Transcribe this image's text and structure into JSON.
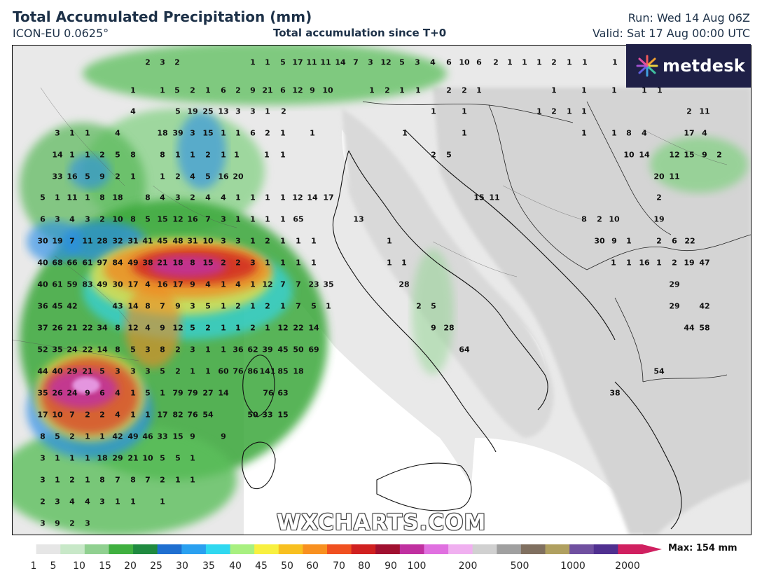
{
  "header": {
    "title": "Total Accumulated Precipitation (mm)",
    "model": "ICON-EU 0.0625°",
    "subtitle": "Total accumulation since T+0",
    "run": "Run: Wed 14 Aug 06Z",
    "valid": "Valid: Sat 17 Aug 00:00 UTC"
  },
  "logo": {
    "text": "metdesk",
    "icon": "metdesk-star-icon"
  },
  "watermark": "WXCHARTS.COM",
  "colorbar": {
    "ticks": [
      "1",
      "5",
      "10",
      "15",
      "20",
      "25",
      "30",
      "35",
      "40",
      "45",
      "50",
      "60",
      "70",
      "80",
      "90",
      "100",
      "200",
      "500",
      "1000",
      "2000"
    ],
    "max_label": "Max: 154 mm",
    "colors": [
      "#ffffff",
      "#e6e6e6",
      "#c8e8c8",
      "#90d090",
      "#40b040",
      "#208a40",
      "#1f6fd0",
      "#2aa0f0",
      "#30d8f0",
      "#a8f080",
      "#f8f040",
      "#f8c020",
      "#f89020",
      "#f05020",
      "#d02020",
      "#a01030",
      "#c030a0",
      "#e070e0",
      "#f0b0f0",
      "#d0d0d0",
      "#a0a0a0",
      "#807060",
      "#b0a060",
      "#7050a0",
      "#503090",
      "#d02060"
    ]
  },
  "values": [
    "2",
    "3",
    "2",
    "1",
    "1",
    "5",
    "17",
    "11",
    "11",
    "14",
    "7",
    "3",
    "12",
    "5",
    "3",
    "4",
    "6",
    "10",
    "6",
    "2",
    "1",
    "1",
    "1",
    "2",
    "1",
    "1",
    "1",
    "1",
    "1",
    "5",
    "2",
    "1",
    "6",
    "2",
    "9",
    "21",
    "6",
    "12",
    "9",
    "10",
    "1",
    "2",
    "1",
    "1",
    "2",
    "2",
    "1",
    "1",
    "1",
    "1",
    "1",
    "1",
    "4",
    "5",
    "19",
    "25",
    "13",
    "3",
    "3",
    "1",
    "2",
    "1",
    "1",
    "1",
    "2",
    "1",
    "1",
    "2",
    "11",
    "3",
    "1",
    "1",
    "4",
    "18",
    "39",
    "3",
    "15",
    "1",
    "1",
    "6",
    "2",
    "1",
    "1",
    "1",
    "1",
    "1",
    "1",
    "8",
    "4",
    "17",
    "4",
    "14",
    "1",
    "1",
    "2",
    "5",
    "8",
    "8",
    "1",
    "1",
    "2",
    "1",
    "1",
    "1",
    "1",
    "2",
    "5",
    "10",
    "14",
    "12",
    "15",
    "9",
    "2",
    "33",
    "16",
    "5",
    "9",
    "2",
    "1",
    "1",
    "2",
    "4",
    "5",
    "16",
    "20",
    "20",
    "11",
    "5",
    "1",
    "11",
    "1",
    "8",
    "18",
    "8",
    "4",
    "3",
    "2",
    "4",
    "4",
    "1",
    "1",
    "1",
    "1",
    "12",
    "14",
    "17",
    "15",
    "11",
    "2",
    "6",
    "3",
    "4",
    "3",
    "2",
    "10",
    "8",
    "5",
    "15",
    "12",
    "16",
    "7",
    "3",
    "1",
    "1",
    "1",
    "1",
    "65",
    "13",
    "8",
    "2",
    "10",
    "19",
    "30",
    "19",
    "7",
    "11",
    "28",
    "32",
    "31",
    "41",
    "45",
    "48",
    "31",
    "10",
    "3",
    "3",
    "1",
    "2",
    "1",
    "1",
    "1",
    "1",
    "30",
    "9",
    "1",
    "2",
    "6",
    "22",
    "40",
    "68",
    "66",
    "61",
    "97",
    "84",
    "49",
    "38",
    "21",
    "18",
    "8",
    "15",
    "2",
    "2",
    "3",
    "1",
    "1",
    "1",
    "1",
    "1",
    "1",
    "1",
    "1",
    "16",
    "1",
    "2",
    "19",
    "47",
    "40",
    "61",
    "59",
    "83",
    "49",
    "30",
    "17",
    "4",
    "16",
    "17",
    "9",
    "4",
    "1",
    "4",
    "1",
    "12",
    "7",
    "7",
    "23",
    "35",
    "28",
    "29",
    "36",
    "45",
    "42",
    "43",
    "14",
    "8",
    "7",
    "9",
    "3",
    "5",
    "1",
    "2",
    "1",
    "2",
    "1",
    "7",
    "5",
    "1",
    "2",
    "5",
    "29",
    "42",
    "37",
    "26",
    "21",
    "22",
    "34",
    "8",
    "12",
    "4",
    "9",
    "12",
    "5",
    "2",
    "1",
    "1",
    "2",
    "1",
    "12",
    "22",
    "14",
    "9",
    "28",
    "44",
    "58",
    "52",
    "35",
    "24",
    "22",
    "14",
    "8",
    "5",
    "3",
    "8",
    "2",
    "3",
    "1",
    "1",
    "36",
    "62",
    "39",
    "45",
    "50",
    "69",
    "64",
    "44",
    "40",
    "29",
    "21",
    "5",
    "3",
    "3",
    "3",
    "5",
    "2",
    "1",
    "1",
    "60",
    "76",
    "86",
    "141",
    "85",
    "18",
    "54",
    "35",
    "26",
    "24",
    "9",
    "6",
    "4",
    "1",
    "5",
    "1",
    "79",
    "79",
    "27",
    "14",
    "76",
    "63",
    "38",
    "17",
    "10",
    "7",
    "2",
    "2",
    "4",
    "1",
    "1",
    "17",
    "82",
    "76",
    "54",
    "50",
    "33",
    "15",
    "8",
    "5",
    "2",
    "1",
    "1",
    "42",
    "49",
    "46",
    "33",
    "15",
    "9",
    "9",
    "3",
    "1",
    "1",
    "1",
    "18",
    "29",
    "21",
    "10",
    "5",
    "5",
    "1",
    "3",
    "1",
    "2",
    "1",
    "8",
    "7",
    "8",
    "7",
    "2",
    "1",
    "1",
    "2",
    "3",
    "4",
    "4",
    "3",
    "1",
    "1",
    "1",
    "3",
    "9",
    "2",
    "3"
  ]
}
